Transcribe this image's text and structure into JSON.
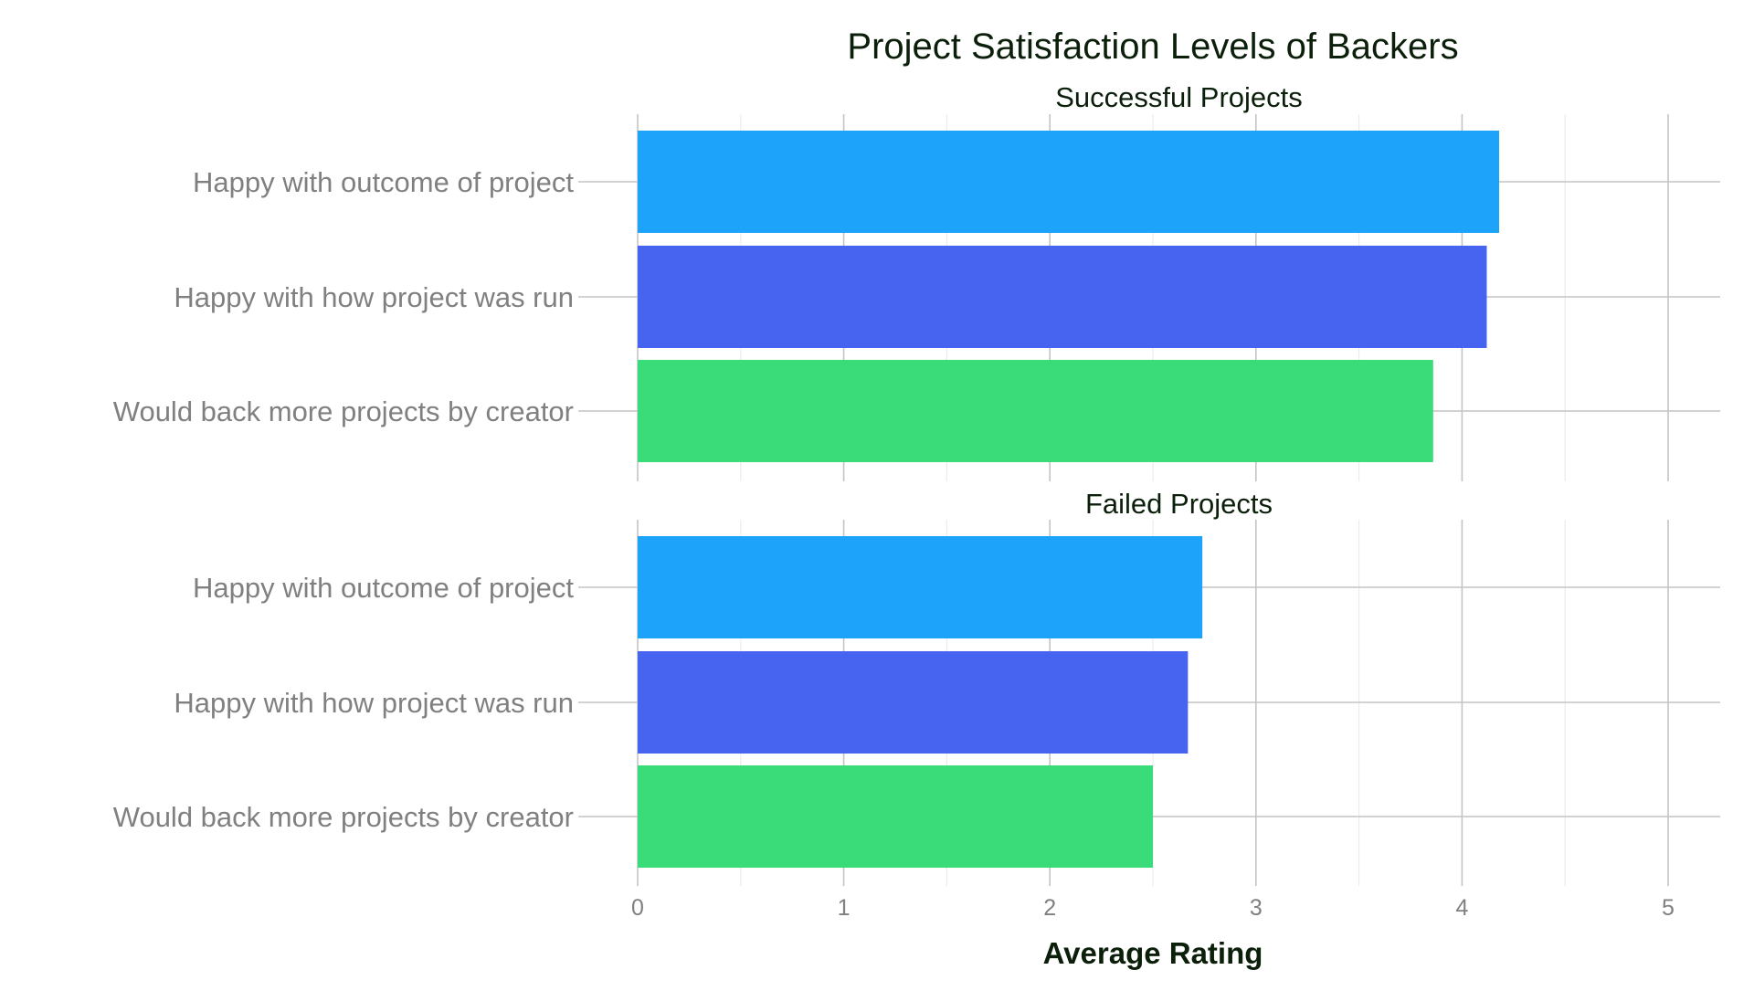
{
  "chart_data": {
    "type": "bar",
    "orientation": "horizontal",
    "title": "Project Satisfaction Levels of Backers",
    "xlabel": "Average Rating",
    "ylabel": "",
    "xlim": [
      0,
      5.25
    ],
    "x_ticks": [
      0,
      1,
      2,
      3,
      4,
      5
    ],
    "categories": [
      "Happy with outcome of project",
      "Happy with how project was run",
      "Would back more projects by creator"
    ],
    "category_colors": [
      "#1ea3fb",
      "#4664ef",
      "#3adc79"
    ],
    "grid": true,
    "legend": "none",
    "facets": [
      {
        "name": "Successful Projects",
        "values": [
          4.18,
          4.12,
          3.86
        ]
      },
      {
        "name": "Failed Projects",
        "values": [
          2.74,
          2.67,
          2.5
        ]
      }
    ]
  }
}
